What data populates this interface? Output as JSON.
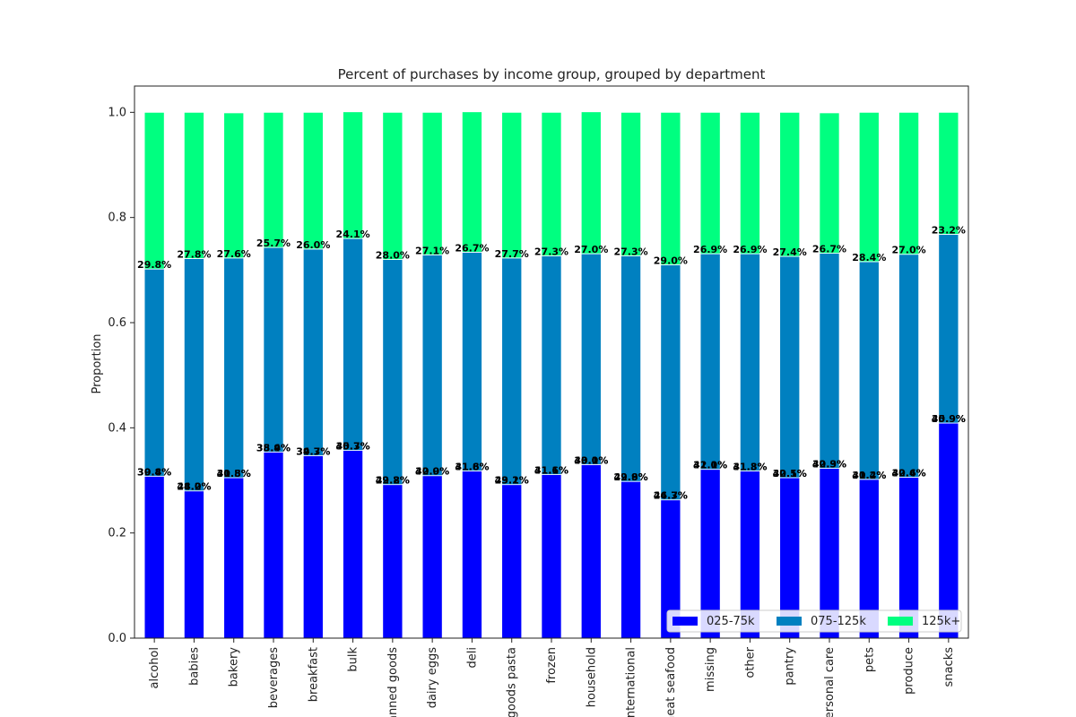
{
  "chart_data": {
    "type": "bar",
    "stacked": true,
    "title": "Percent of purchases by income group, grouped by department",
    "xlabel": "",
    "ylabel": "Proportion",
    "ylim": [
      0,
      1.05
    ],
    "yticks": [
      "0.0",
      "0.2",
      "0.4",
      "0.6",
      "0.8",
      "1.0"
    ],
    "grid": false,
    "legend_position": "bottom-right",
    "categories": [
      "alcohol",
      "babies",
      "bakery",
      "beverages",
      "breakfast",
      "bulk",
      "canned goods",
      "dairy eggs",
      "deli",
      "dry goods pasta",
      "frozen",
      "household",
      "international",
      "meat seafood",
      "missing",
      "other",
      "pantry",
      "personal care",
      "pets",
      "produce",
      "snacks"
    ],
    "series": [
      {
        "name": "025-75k",
        "color": "#0000ff",
        "values": [
          0.308,
          0.28,
          0.305,
          0.354,
          0.347,
          0.357,
          0.292,
          0.309,
          0.318,
          0.292,
          0.311,
          0.33,
          0.298,
          0.263,
          0.321,
          0.318,
          0.305,
          0.323,
          0.302,
          0.306,
          0.409
        ],
        "labels": [
          "30.8%",
          "28.0%",
          "30.5%",
          "35.4%",
          "34.7%",
          "35.7%",
          "29.2%",
          "30.9%",
          "31.8%",
          "29.2%",
          "31.1%",
          "33.0%",
          "29.8%",
          "26.3%",
          "32.1%",
          "31.8%",
          "30.5%",
          "32.3%",
          "30.2%",
          "30.6%",
          "40.9%"
        ]
      },
      {
        "name": "075-125k",
        "color": "#0080c0",
        "values": [
          0.394,
          0.442,
          0.418,
          0.389,
          0.393,
          0.403,
          0.428,
          0.42,
          0.416,
          0.431,
          0.416,
          0.401,
          0.429,
          0.447,
          0.41,
          0.413,
          0.421,
          0.409,
          0.414,
          0.424,
          0.359
        ],
        "labels": [
          "39.4%",
          "44.2%",
          "41.8%",
          "38.9%",
          "39.3%",
          "40.3%",
          "42.8%",
          "42.0%",
          "41.6%",
          "43.1%",
          "41.6%",
          "40.1%",
          "42.9%",
          "44.7%",
          "41.0%",
          "41.3%",
          "42.1%",
          "40.9%",
          "41.4%",
          "42.4%",
          "35.9%"
        ]
      },
      {
        "name": "125k+",
        "color": "#00ff80",
        "values": [
          0.298,
          0.278,
          0.276,
          0.257,
          0.26,
          0.241,
          0.28,
          0.271,
          0.267,
          0.277,
          0.273,
          0.27,
          0.273,
          0.29,
          0.269,
          0.269,
          0.274,
          0.267,
          0.284,
          0.27,
          0.232
        ],
        "labels": [
          "29.8%",
          "27.8%",
          "27.6%",
          "25.7%",
          "26.0%",
          "24.1%",
          "28.0%",
          "27.1%",
          "26.7%",
          "27.7%",
          "27.3%",
          "27.0%",
          "27.3%",
          "29.0%",
          "26.9%",
          "26.9%",
          "27.4%",
          "26.7%",
          "28.4%",
          "27.0%",
          "23.2%"
        ]
      }
    ]
  }
}
